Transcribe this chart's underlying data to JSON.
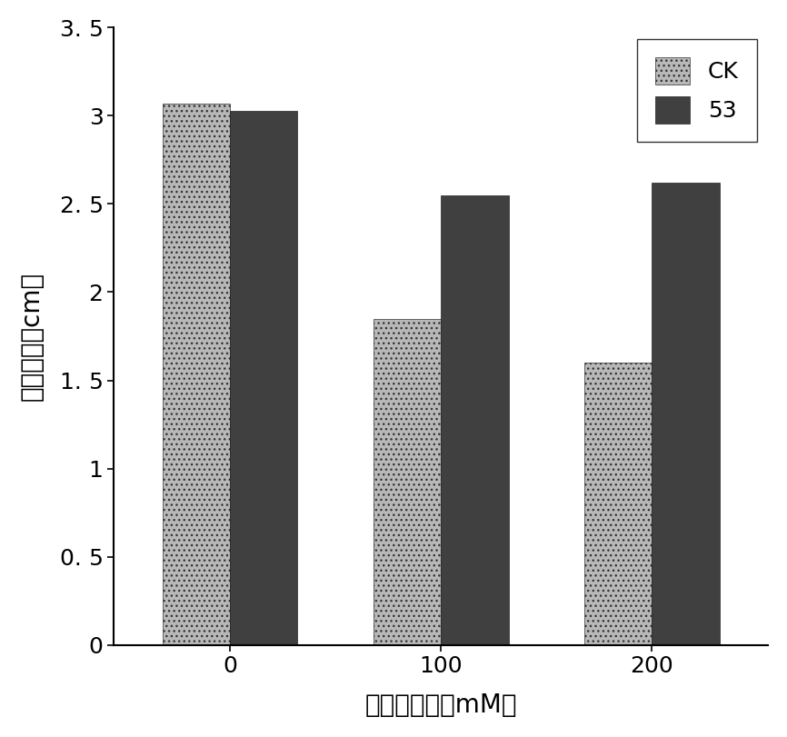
{
  "categories": [
    "0",
    "100",
    "200"
  ],
  "series": [
    {
      "label": "CK",
      "values": [
        3.07,
        1.85,
        1.6
      ],
      "color": "#b8b8b8",
      "hatch": "......"
    },
    {
      "label": "53",
      "values": [
        3.03,
        2.55,
        2.62
      ],
      "color": "#404040",
      "hatch": "......"
    }
  ],
  "xlabel": "甘露醇浓度（mM）",
  "ylabel": "平均根长（cm）",
  "ylim": [
    0,
    3.5
  ],
  "yticks": [
    0,
    0.5,
    1.0,
    1.5,
    2.0,
    2.5,
    3.0,
    3.5
  ],
  "ytick_labels": [
    "0",
    "0. 5",
    "1",
    "1. 5",
    "2",
    "2. 5",
    "3",
    "3. 5"
  ],
  "bar_width": 0.32,
  "background_color": "#ffffff",
  "tick_fontsize": 18,
  "label_fontsize": 20,
  "legend_fontsize": 18
}
